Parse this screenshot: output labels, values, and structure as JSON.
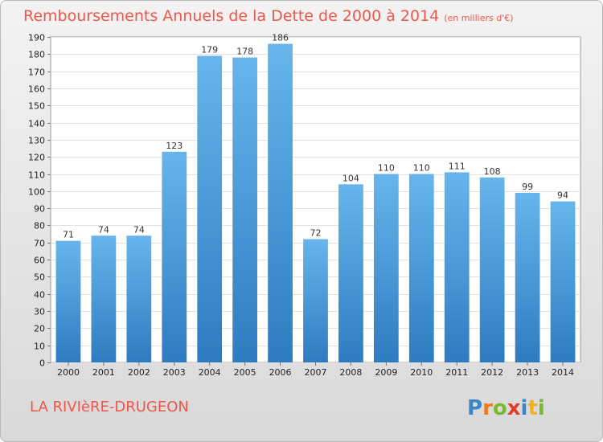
{
  "title": "Remboursements Annuels de la Dette de 2000 à 2014",
  "subtitle": "(en milliers d'€)",
  "commune": "LA RIVIèRE-DRUGEON",
  "logo_text": "Proxiti",
  "colors": {
    "title": "#f0564a",
    "bar_top": "#67b5ec",
    "bar_bottom": "#2e7cc0"
  },
  "chart_data": {
    "type": "bar",
    "title": "Remboursements Annuels de la Dette de 2000 à 2014",
    "subtitle": "(en milliers d'€)",
    "categories": [
      "2000",
      "2001",
      "2002",
      "2003",
      "2004",
      "2005",
      "2006",
      "2007",
      "2008",
      "2009",
      "2010",
      "2011",
      "2012",
      "2013",
      "2014"
    ],
    "values": [
      71,
      74,
      74,
      123,
      179,
      178,
      186,
      72,
      104,
      110,
      110,
      111,
      108,
      99,
      94
    ],
    "ylim": [
      0,
      190
    ],
    "ytick_step": 10,
    "grid": true,
    "legend": "none"
  }
}
